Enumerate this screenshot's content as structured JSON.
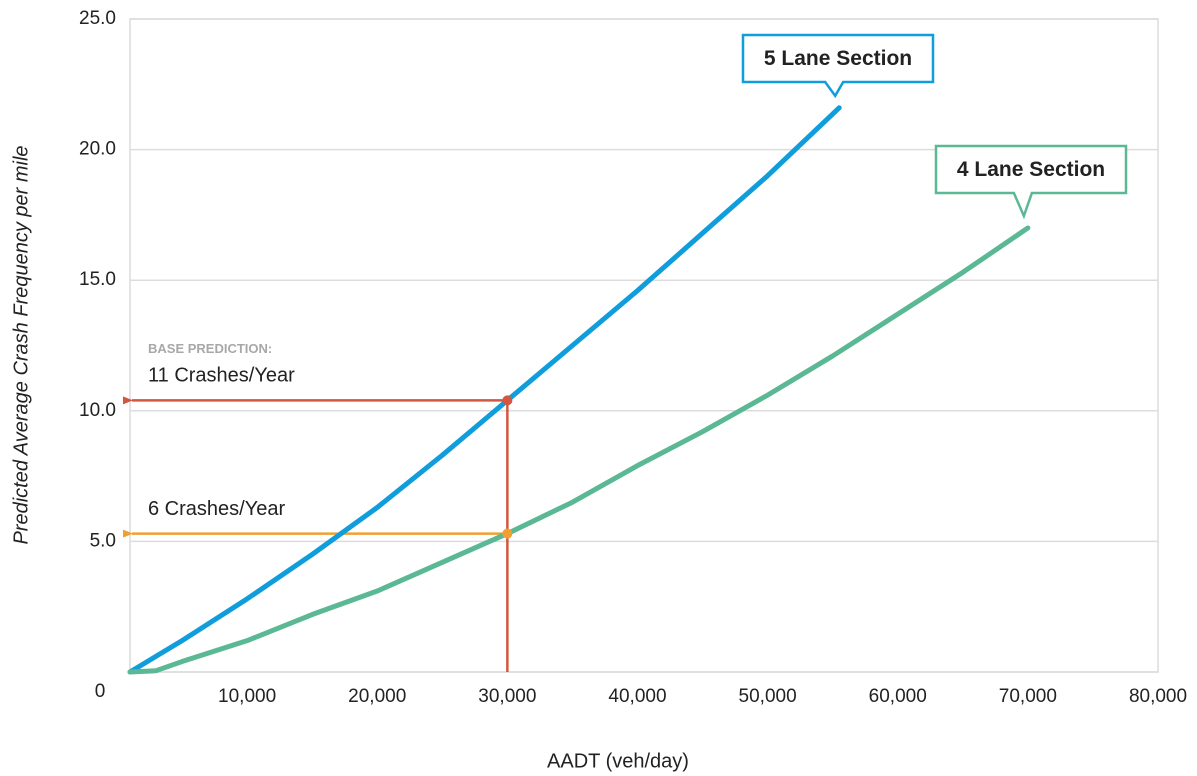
{
  "chart_data": {
    "type": "line",
    "y_label": "Predicted Average Crash Frequency per mile",
    "x_label": "AADT (veh/day)",
    "xlim": [
      1000,
      80000
    ],
    "ylim": [
      0,
      25
    ],
    "xticks": [
      {
        "value": 10000,
        "label": "10,000"
      },
      {
        "value": 20000,
        "label": "20,000"
      },
      {
        "value": 30000,
        "label": "30,000"
      },
      {
        "value": 40000,
        "label": "40,000"
      },
      {
        "value": 50000,
        "label": "50,000"
      },
      {
        "value": 60000,
        "label": "60,000"
      },
      {
        "value": 70000,
        "label": "70,000"
      },
      {
        "value": 80000,
        "label": "80,000"
      }
    ],
    "yticks": [
      0,
      {
        "value": 5,
        "label": "5.0"
      },
      {
        "value": 10,
        "label": "10.0"
      },
      {
        "value": 15,
        "label": "15.0"
      },
      {
        "value": 20,
        "label": "20.0"
      },
      {
        "value": 25,
        "label": "25.0"
      }
    ],
    "grid": true,
    "series": [
      {
        "name": "5 Lane Section",
        "color": "#109ddb",
        "x": [
          1000,
          5000,
          10000,
          15000,
          20000,
          25000,
          30000,
          35000,
          40000,
          45000,
          50000,
          55500
        ],
        "values": [
          0,
          1.2,
          2.8,
          4.5,
          6.3,
          8.3,
          10.4,
          12.5,
          14.6,
          16.8,
          19.0,
          21.6
        ]
      },
      {
        "name": "4 Lane Section",
        "color": "#5bb894",
        "x": [
          1000,
          3000,
          5000,
          10000,
          15000,
          20000,
          25000,
          30000,
          35000,
          40000,
          45000,
          50000,
          55000,
          60000,
          65000,
          70000
        ],
        "values": [
          0,
          0.05,
          0.4,
          1.2,
          2.2,
          3.1,
          4.2,
          5.3,
          6.5,
          7.9,
          9.2,
          10.6,
          12.1,
          13.7,
          15.3,
          17.0
        ]
      }
    ],
    "base_prediction_label": "BASE PREDICTION:",
    "reference_points": [
      {
        "label": "11 Crashes/Year",
        "x": 30000,
        "y": 10.4,
        "color": "#d2573f"
      },
      {
        "label": "6 Crashes/Year",
        "x": 30000,
        "y": 5.3,
        "color": "#f0a030"
      }
    ]
  }
}
